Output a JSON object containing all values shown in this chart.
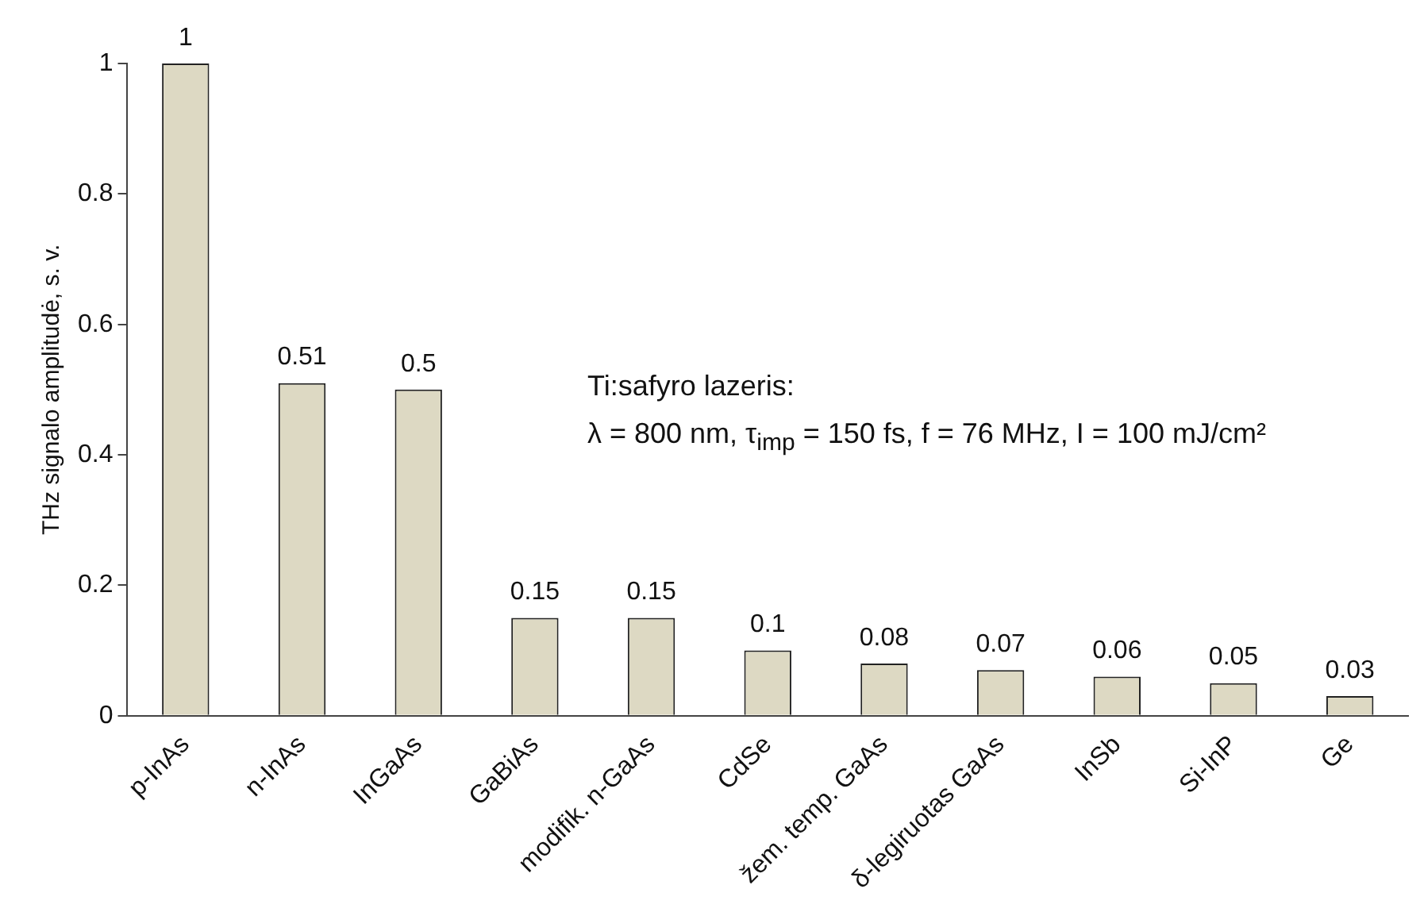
{
  "chart_data": {
    "type": "bar",
    "ylabel": "THz signalo amplitudė, s. v.",
    "categories": [
      "p-InAs",
      "n-InAs",
      "InGaAs",
      "GaBiAs",
      "modifik. n-GaAs",
      "CdSe",
      "žem. temp. GaAs",
      "δ-legiruotas GaAs",
      "InSb",
      "Si-InP",
      "Ge"
    ],
    "values": [
      1,
      0.51,
      0.5,
      0.15,
      0.15,
      0.1,
      0.08,
      0.07,
      0.06,
      0.05,
      0.03
    ],
    "color": "#ddd9c3",
    "ylim": [
      0,
      1
    ],
    "yticks": [
      0,
      0.2,
      0.4,
      0.6,
      0.8,
      1
    ],
    "grid": false,
    "legend": false,
    "data_labels": true,
    "annotations": [
      "Ti:safyro lazeris:",
      "λ = 800 nm, τ$_{imp}$ = 150 fs, f = 76 MHz, I = 100 mJ/cm²"
    ]
  }
}
